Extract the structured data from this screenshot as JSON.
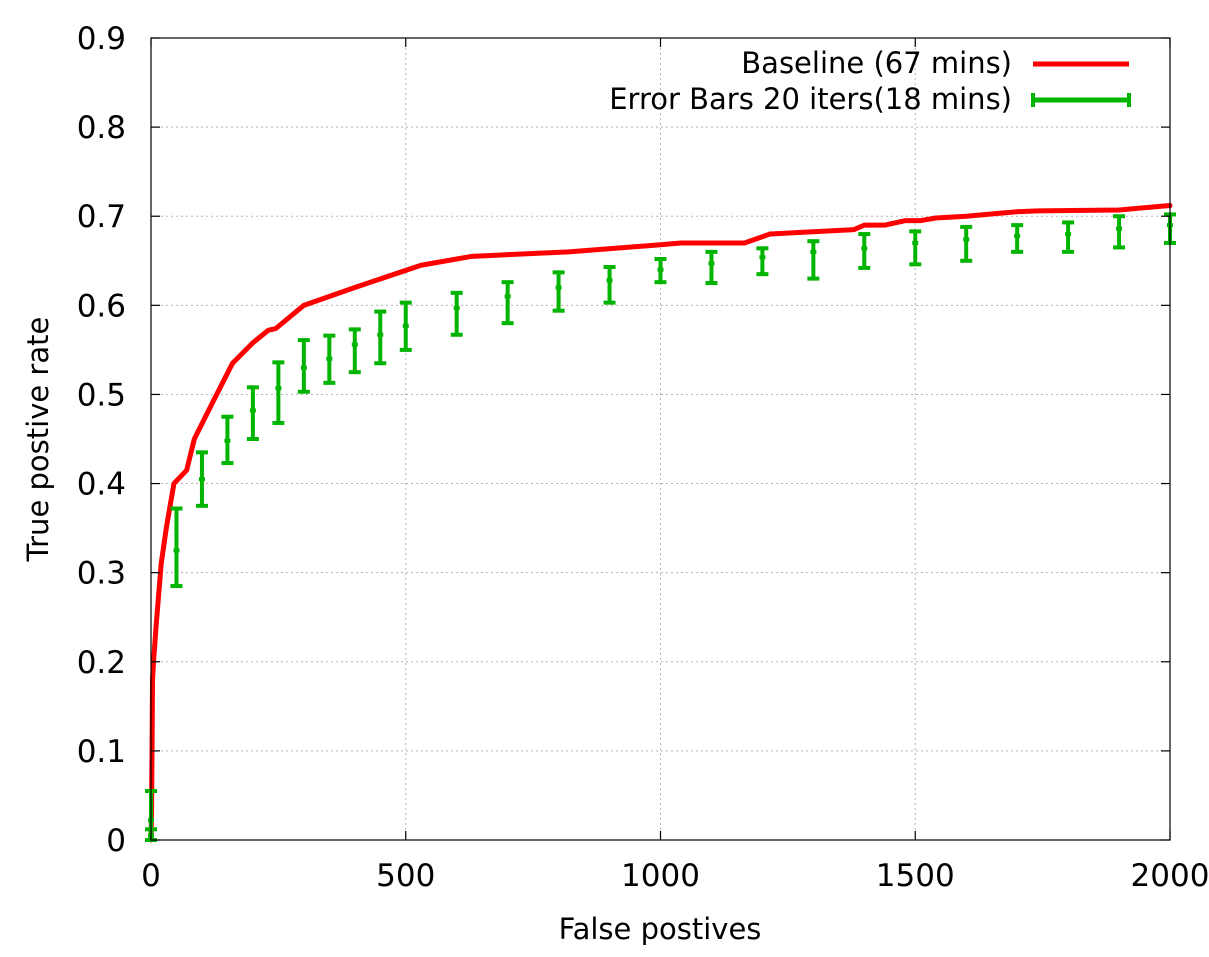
{
  "chart_data": {
    "type": "line",
    "title": "",
    "xlabel": "False postives",
    "ylabel": "True postive rate",
    "xlim": [
      0,
      2000
    ],
    "ylim": [
      0,
      0.9
    ],
    "xticks": [
      0,
      500,
      1000,
      1500,
      2000
    ],
    "yticks": [
      0,
      0.1,
      0.2,
      0.3,
      0.4,
      0.5,
      0.6,
      0.7,
      0.8,
      0.9
    ],
    "xtick_labels": [
      "0",
      "500",
      "1000",
      "1500",
      "2000"
    ],
    "ytick_labels": [
      "0",
      "0.1",
      "0.2",
      "0.3",
      "0.4",
      "0.5",
      "0.6",
      "0.7",
      "0.8",
      "0.9"
    ],
    "grid": true,
    "legend_position": "top-right",
    "series": [
      {
        "name": "Baseline (67 mins)",
        "style": "line",
        "color": "#ff0000",
        "x": [
          0,
          1,
          2,
          3,
          5,
          10,
          20,
          30,
          45,
          70,
          85,
          120,
          160,
          200,
          230,
          245,
          300,
          400,
          530,
          630,
          820,
          1000,
          1040,
          1165,
          1215,
          1380,
          1400,
          1440,
          1480,
          1510,
          1540,
          1600,
          1660,
          1700,
          1740,
          1900,
          2000
        ],
        "y": [
          0,
          0.03,
          0.1,
          0.18,
          0.2,
          0.24,
          0.31,
          0.35,
          0.4,
          0.415,
          0.45,
          0.49,
          0.535,
          0.558,
          0.572,
          0.574,
          0.6,
          0.62,
          0.645,
          0.655,
          0.66,
          0.668,
          0.67,
          0.67,
          0.68,
          0.685,
          0.69,
          0.69,
          0.695,
          0.695,
          0.698,
          0.7,
          0.703,
          0.705,
          0.706,
          0.707,
          0.712
        ]
      },
      {
        "name": "Error Bars 20 iters(18 mins)",
        "style": "errorbars",
        "color": "#00b400",
        "points": [
          {
            "x": 0,
            "y": 0.005,
            "lo": 0.0,
            "hi": 0.012
          },
          {
            "x": 0,
            "y": 0.022,
            "lo": 0.0,
            "hi": 0.055
          },
          {
            "x": 50,
            "y": 0.325,
            "lo": 0.285,
            "hi": 0.372
          },
          {
            "x": 100,
            "y": 0.405,
            "lo": 0.375,
            "hi": 0.435
          },
          {
            "x": 150,
            "y": 0.448,
            "lo": 0.423,
            "hi": 0.475
          },
          {
            "x": 200,
            "y": 0.482,
            "lo": 0.45,
            "hi": 0.508
          },
          {
            "x": 250,
            "y": 0.507,
            "lo": 0.468,
            "hi": 0.536
          },
          {
            "x": 300,
            "y": 0.53,
            "lo": 0.503,
            "hi": 0.561
          },
          {
            "x": 350,
            "y": 0.54,
            "lo": 0.513,
            "hi": 0.566
          },
          {
            "x": 400,
            "y": 0.556,
            "lo": 0.525,
            "hi": 0.573
          },
          {
            "x": 450,
            "y": 0.567,
            "lo": 0.535,
            "hi": 0.593
          },
          {
            "x": 500,
            "y": 0.577,
            "lo": 0.55,
            "hi": 0.603
          },
          {
            "x": 600,
            "y": 0.597,
            "lo": 0.567,
            "hi": 0.614
          },
          {
            "x": 700,
            "y": 0.61,
            "lo": 0.58,
            "hi": 0.626
          },
          {
            "x": 800,
            "y": 0.62,
            "lo": 0.594,
            "hi": 0.637
          },
          {
            "x": 900,
            "y": 0.628,
            "lo": 0.603,
            "hi": 0.643
          },
          {
            "x": 1000,
            "y": 0.64,
            "lo": 0.626,
            "hi": 0.652
          },
          {
            "x": 1100,
            "y": 0.647,
            "lo": 0.625,
            "hi": 0.66
          },
          {
            "x": 1200,
            "y": 0.654,
            "lo": 0.635,
            "hi": 0.664
          },
          {
            "x": 1300,
            "y": 0.66,
            "lo": 0.63,
            "hi": 0.672
          },
          {
            "x": 1400,
            "y": 0.664,
            "lo": 0.642,
            "hi": 0.68
          },
          {
            "x": 1500,
            "y": 0.67,
            "lo": 0.646,
            "hi": 0.683
          },
          {
            "x": 1600,
            "y": 0.674,
            "lo": 0.65,
            "hi": 0.688
          },
          {
            "x": 1700,
            "y": 0.678,
            "lo": 0.66,
            "hi": 0.69
          },
          {
            "x": 1800,
            "y": 0.68,
            "lo": 0.66,
            "hi": 0.693
          },
          {
            "x": 1900,
            "y": 0.686,
            "lo": 0.665,
            "hi": 0.7
          },
          {
            "x": 2000,
            "y": 0.69,
            "lo": 0.67,
            "hi": 0.702
          }
        ]
      }
    ]
  }
}
